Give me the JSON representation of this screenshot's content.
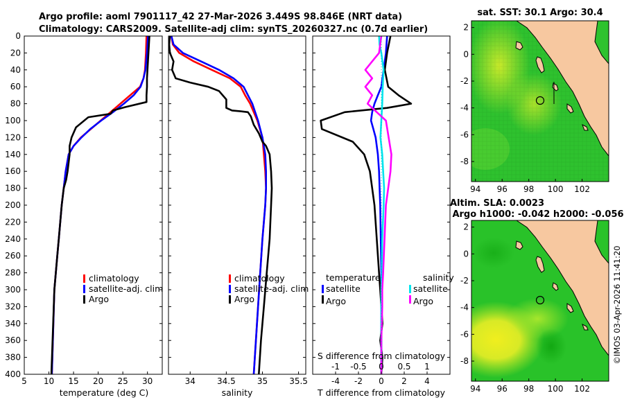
{
  "titles": {
    "line1": "Argo profile: aoml 7901117_42 27-Mar-2026 3.449S 98.846E (NRT data)",
    "line2": "Climatology: CARS2009. Satellite-adj clim: synTS_20260327.nc (0.7d earlier)"
  },
  "credit": "©IMOS 03-Apr-2026 11:41:20",
  "colors": {
    "climatology": "#ff0000",
    "satellite": "#0000ff",
    "argo": "#000000",
    "sal_satellite": "#00e5ee",
    "sal_argo": "#ff00ff",
    "land": "#f7c8a0",
    "sea_green": "#1fbf1f",
    "yellow_green": "#b4e61e"
  },
  "chart_data": [
    {
      "type": "line",
      "id": "temperature",
      "xlabel": "temperature (deg C)",
      "ylabel": "",
      "xlim": [
        5,
        33
      ],
      "ylim": [
        400,
        0
      ],
      "xticks": [
        5,
        10,
        15,
        20,
        25,
        30
      ],
      "yticks": [
        0,
        20,
        40,
        60,
        80,
        100,
        120,
        140,
        160,
        180,
        200,
        220,
        240,
        260,
        280,
        300,
        320,
        340,
        360,
        380,
        400
      ],
      "legend": [
        "climatology",
        "satellite-adj. clim",
        "Argo"
      ],
      "series": [
        {
          "name": "climatology",
          "color": "#ff0000",
          "x": [
            29.8,
            29.7,
            29.5,
            29.2,
            28.5,
            26.5,
            24.5,
            22.5,
            20.5,
            18.5,
            16.5,
            15,
            14,
            13.4,
            13,
            12.6,
            12.3,
            12,
            11.7,
            11.4,
            11.1,
            10.6
          ],
          "y": [
            0,
            20,
            40,
            50,
            60,
            70,
            80,
            90,
            100,
            110,
            120,
            130,
            140,
            160,
            180,
            200,
            220,
            240,
            260,
            280,
            300,
            400
          ]
        },
        {
          "name": "satellite-adj. clim",
          "color": "#0000ff",
          "x": [
            30.1,
            29.9,
            29.6,
            29.2,
            28.6,
            27.2,
            25.2,
            23,
            20.6,
            18.4,
            16.6,
            15,
            14,
            13.4,
            13,
            12.6,
            12.3,
            12,
            11.7,
            11.4,
            11.1,
            10.6
          ],
          "y": [
            0,
            20,
            40,
            50,
            60,
            70,
            80,
            90,
            100,
            110,
            120,
            130,
            140,
            160,
            180,
            200,
            220,
            240,
            260,
            280,
            300,
            400
          ]
        },
        {
          "name": "Argo",
          "color": "#000000",
          "x": [
            30.4,
            30.2,
            30,
            29.9,
            29.9,
            29.8,
            29.8,
            25.5,
            23,
            22.5,
            18,
            15.5,
            14.6,
            14.2,
            14.2,
            13.8,
            13.5,
            13,
            12.6,
            12.3,
            12,
            11.7,
            11.4,
            11.1,
            10.5
          ],
          "y": [
            0,
            20,
            40,
            50,
            60,
            70,
            78,
            84,
            88,
            92,
            96,
            108,
            120,
            130,
            140,
            160,
            170,
            180,
            200,
            220,
            240,
            260,
            280,
            300,
            400
          ]
        }
      ]
    },
    {
      "type": "line",
      "id": "salinity",
      "xlabel": "salinity",
      "ylabel": "",
      "xlim": [
        33.7,
        35.6
      ],
      "ylim": [
        400,
        0
      ],
      "xticks": [
        34,
        34.5,
        35,
        35.5
      ],
      "legend": [
        "climatology",
        "satellite-adj. clim",
        "Argo"
      ],
      "series": [
        {
          "name": "climatology",
          "color": "#ff0000",
          "x": [
            33.74,
            33.76,
            33.85,
            34.05,
            34.3,
            34.55,
            34.7,
            34.76,
            34.83,
            34.93,
            35,
            35.02,
            35.04,
            35.05,
            35.04,
            35,
            34.97,
            34.94,
            34.91,
            34.88
          ],
          "y": [
            0,
            10,
            20,
            30,
            40,
            50,
            60,
            70,
            80,
            100,
            120,
            140,
            160,
            180,
            200,
            240,
            280,
            320,
            360,
            400
          ]
        },
        {
          "name": "satellite-adj. clim",
          "color": "#0000ff",
          "x": [
            33.74,
            33.77,
            33.9,
            34.15,
            34.4,
            34.6,
            34.74,
            34.8,
            34.86,
            34.94,
            35,
            35.04,
            35.05,
            35.05,
            35.04,
            35,
            34.97,
            34.94,
            34.91,
            34.88
          ],
          "y": [
            0,
            10,
            20,
            30,
            40,
            50,
            60,
            70,
            80,
            100,
            120,
            140,
            160,
            180,
            200,
            240,
            280,
            320,
            360,
            400
          ]
        },
        {
          "name": "Argo",
          "color": "#000000",
          "x": [
            33.72,
            33.71,
            33.72,
            33.77,
            33.75,
            33.8,
            34,
            34.25,
            34.4,
            34.5,
            34.5,
            34.58,
            34.7,
            34.8,
            34.84,
            34.88,
            34.95,
            35,
            35.05,
            35.1,
            35.12,
            35.13,
            35.12,
            35.1,
            35.06,
            35.02,
            34.98,
            34.95
          ],
          "y": [
            0,
            10,
            20,
            30,
            40,
            50,
            55,
            60,
            65,
            75,
            85,
            88,
            89,
            90,
            95,
            105,
            115,
            125,
            130,
            140,
            160,
            180,
            200,
            240,
            280,
            320,
            360,
            400
          ]
        }
      ]
    },
    {
      "type": "line",
      "id": "differences",
      "xlabel": "T difference from climatology",
      "secondary_xlabel": "S difference from climatology",
      "xlim": [
        -6,
        6
      ],
      "ylim": [
        400,
        0
      ],
      "xticks": [
        -4,
        -2,
        0,
        2,
        4
      ],
      "secondary_xticks": [
        -1,
        -0.5,
        0,
        0.5,
        1
      ],
      "secondary_xlim": [
        -1.5,
        1.5
      ],
      "legend_titles": [
        "temperature",
        "salinity"
      ],
      "legend": [
        "satellite",
        "Argo",
        "satellite",
        "Argo"
      ],
      "series": [
        {
          "name": "temperature satellite",
          "color": "#0000ff",
          "axis": "T",
          "x": [
            0.5,
            0.4,
            0.2,
            0,
            -0.3,
            -0.6,
            -0.8,
            -0.9,
            -0.7,
            -0.5,
            -0.4,
            -0.3,
            -0.2,
            -0.15,
            -0.1,
            -0.05,
            0,
            0,
            0,
            0,
            0
          ],
          "y": [
            0,
            20,
            40,
            60,
            70,
            80,
            90,
            100,
            110,
            120,
            130,
            140,
            160,
            180,
            200,
            240,
            280,
            300,
            320,
            360,
            400
          ]
        },
        {
          "name": "temperature Argo",
          "color": "#000000",
          "axis": "T",
          "x": [
            0.8,
            0.5,
            0.3,
            0.6,
            1.5,
            2.6,
            0.5,
            -3.2,
            -5.3,
            -5.2,
            -2.5,
            -1.5,
            -1,
            -0.8,
            -0.6,
            -0.4,
            -0.2,
            -0.1,
            0,
            0.1,
            -0.1,
            0.1,
            0
          ],
          "y": [
            0,
            20,
            40,
            60,
            70,
            80,
            85,
            90,
            100,
            110,
            125,
            140,
            160,
            180,
            200,
            240,
            280,
            300,
            320,
            340,
            360,
            380,
            400
          ]
        },
        {
          "name": "salinity satellite",
          "color": "#00e5ee",
          "axis": "S",
          "x": [
            -0.05,
            -0.04,
            0,
            0.05,
            0.03,
            0.02,
            0,
            -0.02,
            0.02,
            0.04,
            0.06,
            0.05,
            0.02,
            0.01,
            0,
            0,
            0,
            0
          ],
          "y": [
            0,
            10,
            20,
            40,
            60,
            80,
            100,
            120,
            140,
            160,
            180,
            200,
            240,
            280,
            300,
            320,
            360,
            400
          ]
        },
        {
          "name": "salinity Argo",
          "color": "#ff00ff",
          "axis": "S",
          "x": [
            0,
            -0.05,
            -0.2,
            -0.35,
            -0.2,
            -0.35,
            -0.2,
            -0.3,
            -0.1,
            0.1,
            0.22,
            0.2,
            0.15,
            0.1,
            0.07,
            0.04,
            0.02,
            0.02,
            0,
            0
          ],
          "y": [
            0,
            20,
            30,
            40,
            50,
            60,
            70,
            80,
            90,
            100,
            140,
            160,
            180,
            200,
            240,
            280,
            300,
            320,
            360,
            400
          ]
        }
      ]
    },
    {
      "type": "heatmap",
      "id": "sst-map",
      "title": "sat. SST: 30.1 Argo: 30.4",
      "xlim": [
        93.7,
        104
      ],
      "ylim": [
        -9.5,
        2.5
      ],
      "xticks": [
        94,
        96,
        98,
        100,
        102
      ],
      "yticks": [
        2,
        0,
        -2,
        -4,
        -6,
        -8
      ],
      "argo_position": {
        "lon": 98.846,
        "lat": -3.449
      }
    },
    {
      "type": "heatmap",
      "id": "sla-map",
      "title": "Altim. SLA: 0.0023",
      "subtitle": "Argo h1000: -0.042 h2000: -0.056",
      "xlim": [
        93.7,
        104
      ],
      "ylim": [
        -9.5,
        2.5
      ],
      "xticks": [
        94,
        96,
        98,
        100,
        102
      ],
      "yticks": [
        2,
        0,
        -2,
        -4,
        -6,
        -8
      ],
      "argo_position": {
        "lon": 98.846,
        "lat": -3.449
      }
    }
  ]
}
